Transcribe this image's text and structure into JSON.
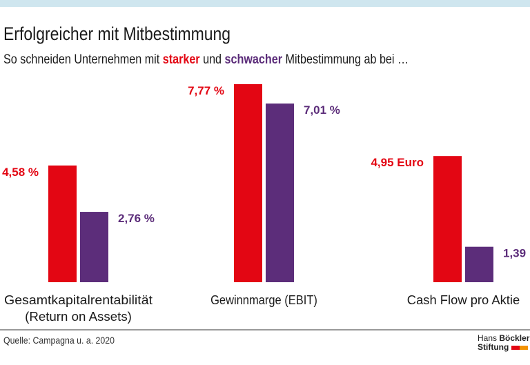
{
  "title": "Erfolgreicher mit Mitbestimmung",
  "subtitle": {
    "pre": "So schneiden Unternehmen mit ",
    "strong": "starker",
    "mid": " und ",
    "weak": "schwacher",
    "post": " Mitbestimmung ab bei …"
  },
  "source": "Quelle: Campagna u. a. 2020",
  "logo": {
    "line1a": "Hans",
    "line1b": "Böckler",
    "line2": "Stiftung"
  },
  "colors": {
    "strong": "#e30613",
    "weak": "#5c2d7a",
    "logo_orange": "#f39200",
    "top_bar": "#cfe6ef"
  },
  "chart_data": {
    "type": "bar",
    "categories": [
      "Gesamtkapitalrentabilität (Return on Assets)",
      "Gewinnmarge (EBIT)",
      "Cash Flow pro Aktie"
    ],
    "category_lines": [
      [
        "Gesamtkapitalrentabilität",
        "(Return on Assets)"
      ],
      [
        "Gewinnmarge (EBIT)"
      ],
      [
        "Cash Flow pro Aktie"
      ]
    ],
    "series": [
      {
        "name": "starker",
        "values": [
          4.58,
          7.77,
          4.95
        ],
        "labels": [
          "4,58 %",
          "7,77 %",
          "4,95 Euro"
        ]
      },
      {
        "name": "schwacher",
        "values": [
          2.76,
          7.01,
          1.39
        ],
        "labels": [
          "2,76 %",
          "7,01 %",
          "1,39"
        ]
      }
    ],
    "ylim": [
      0,
      7.77
    ],
    "grid": false,
    "axes_visible": false
  }
}
